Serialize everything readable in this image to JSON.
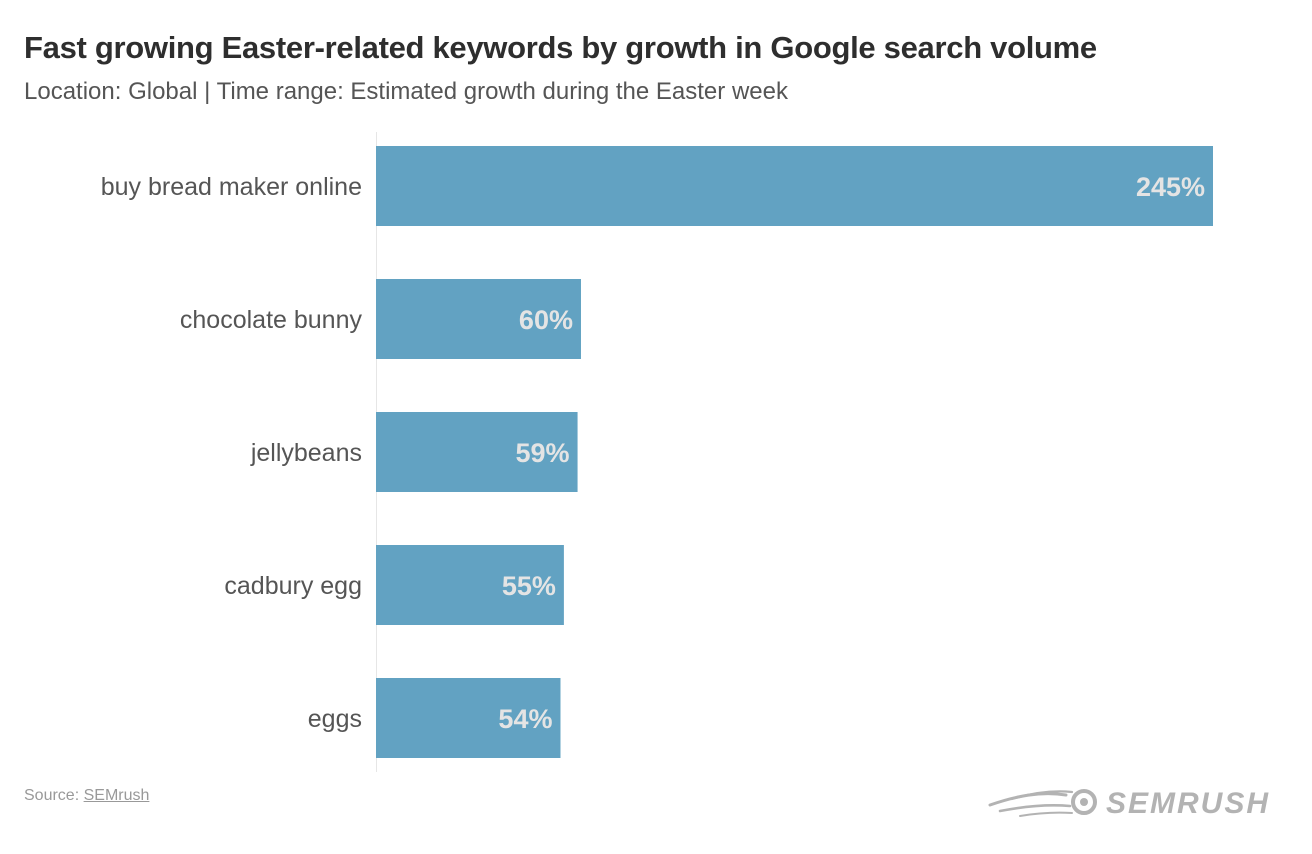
{
  "chart_data": {
    "type": "bar",
    "orientation": "horizontal",
    "title": "Fast growing Easter-related keywords by growth in Google search volume",
    "subtitle": "Location: Global | Time range: Estimated growth during the Easter week",
    "categories": [
      "buy bread maker online",
      "chocolate bunny",
      "jellybeans",
      "cadbury egg",
      "eggs"
    ],
    "values": [
      245,
      60,
      59,
      55,
      54
    ],
    "value_labels": [
      "245%",
      "60%",
      "59%",
      "55%",
      "54%"
    ],
    "xlim": [
      0,
      245
    ],
    "grid": false,
    "legend": "none",
    "colors": {
      "bar": "#62a2c2",
      "bar_label": "#e4e4e4",
      "category_label": "#555555",
      "axis": "#e6e6e6"
    }
  },
  "source": {
    "prefix": "Source: ",
    "link_text": "SEMrush"
  },
  "logo": {
    "wordmark": "SEMRUSH",
    "icon": "semrush-fireball-icon",
    "color": "#b3b3b3"
  }
}
